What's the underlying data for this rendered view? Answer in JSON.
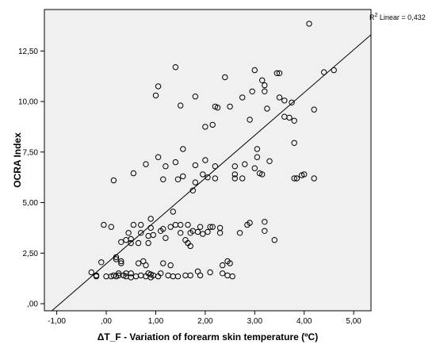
{
  "chart_data": {
    "type": "scatter",
    "xlabel": "ΔT_F - Variation of forearm skin temperature (ºC)",
    "ylabel": "OCRA Index",
    "xlim": [
      -1.25,
      5.35
    ],
    "ylim": [
      -0.35,
      14.55
    ],
    "x_ticks": [
      -1,
      0,
      1,
      2,
      3,
      4,
      5
    ],
    "x_tick_labels": [
      "-1,00",
      ",00",
      "1,00",
      "2,00",
      "3,00",
      "4,00",
      "5,00"
    ],
    "y_ticks": [
      0,
      2.5,
      5,
      7.5,
      10,
      12.5
    ],
    "y_tick_labels": [
      ",00",
      "2,50",
      "5,00",
      "7,50",
      "10,00",
      "12,50"
    ],
    "grid": false,
    "plot_background": "#f0f0f0",
    "marker_color": "#000000",
    "fit_line": {
      "label_prefix": "R",
      "label_sup": "2",
      "label_rest": " Linear = 0,432",
      "r_squared": 0.432,
      "x_from": -1.1,
      "y_from": -0.35,
      "x_to": 5.35,
      "y_to": 13.3
    },
    "points": [
      [
        -0.3,
        1.55
      ],
      [
        -0.2,
        1.35
      ],
      [
        -0.2,
        1.4
      ],
      [
        -0.1,
        2.05
      ],
      [
        -0.05,
        3.9
      ],
      [
        0,
        1.35
      ],
      [
        0.1,
        1.35
      ],
      [
        0.1,
        3.8
      ],
      [
        0.15,
        1.4
      ],
      [
        0.2,
        1.35
      ],
      [
        0.2,
        2.2
      ],
      [
        0.2,
        2.3
      ],
      [
        0.15,
        6.1
      ],
      [
        0.25,
        1.4
      ],
      [
        0.25,
        1.5
      ],
      [
        0.3,
        2.0
      ],
      [
        0.3,
        2.1
      ],
      [
        0.3,
        3.05
      ],
      [
        0.35,
        1.4
      ],
      [
        0.4,
        1.35
      ],
      [
        0.4,
        1.5
      ],
      [
        0.4,
        3.15
      ],
      [
        0.45,
        3.5
      ],
      [
        0.5,
        1.3
      ],
      [
        0.5,
        1.5
      ],
      [
        0.5,
        3.0
      ],
      [
        0.5,
        3.2
      ],
      [
        0.55,
        3.9
      ],
      [
        0.55,
        6.45
      ],
      [
        0.6,
        1.35
      ],
      [
        0.65,
        2.0
      ],
      [
        0.65,
        3.0
      ],
      [
        0.7,
        1.4
      ],
      [
        0.7,
        3.5
      ],
      [
        0.7,
        3.9
      ],
      [
        0.75,
        2.1
      ],
      [
        0.8,
        1.35
      ],
      [
        0.8,
        1.9
      ],
      [
        0.8,
        6.9
      ],
      [
        0.85,
        1.5
      ],
      [
        0.85,
        3.0
      ],
      [
        0.85,
        3.35
      ],
      [
        0.9,
        1.3
      ],
      [
        0.9,
        1.45
      ],
      [
        0.9,
        3.75
      ],
      [
        0.9,
        4.2
      ],
      [
        0.95,
        1.4
      ],
      [
        0.95,
        3.4
      ],
      [
        1.0,
        10.3
      ],
      [
        1.05,
        10.75
      ],
      [
        1.05,
        7.25
      ],
      [
        1.05,
        1.35
      ],
      [
        1.1,
        1.5
      ],
      [
        1.1,
        3.6
      ],
      [
        1.15,
        2.0
      ],
      [
        1.15,
        3.7
      ],
      [
        1.15,
        6.15
      ],
      [
        1.2,
        6.8
      ],
      [
        1.2,
        3.25
      ],
      [
        1.25,
        1.4
      ],
      [
        1.3,
        1.9
      ],
      [
        1.3,
        3.8
      ],
      [
        1.35,
        1.35
      ],
      [
        1.35,
        4.55
      ],
      [
        1.4,
        11.7
      ],
      [
        1.4,
        7.0
      ],
      [
        1.4,
        3.9
      ],
      [
        1.45,
        1.35
      ],
      [
        1.45,
        6.15
      ],
      [
        1.5,
        3.5
      ],
      [
        1.5,
        3.9
      ],
      [
        1.5,
        9.8
      ],
      [
        1.55,
        6.3
      ],
      [
        1.55,
        7.65
      ],
      [
        1.6,
        1.4
      ],
      [
        1.6,
        3.15
      ],
      [
        1.65,
        3.0
      ],
      [
        1.65,
        3.9
      ],
      [
        1.7,
        1.4
      ],
      [
        1.7,
        2.85
      ],
      [
        1.7,
        3.5
      ],
      [
        1.75,
        3.6
      ],
      [
        1.75,
        5.6
      ],
      [
        1.8,
        10.25
      ],
      [
        1.8,
        6.85
      ],
      [
        1.8,
        6.0
      ],
      [
        1.85,
        1.6
      ],
      [
        1.85,
        3.55
      ],
      [
        1.9,
        1.4
      ],
      [
        1.9,
        3.8
      ],
      [
        1.95,
        3.45
      ],
      [
        1.95,
        6.4
      ],
      [
        2.0,
        7.1
      ],
      [
        2.0,
        8.75
      ],
      [
        2.05,
        6.25
      ],
      [
        2.05,
        3.55
      ],
      [
        2.1,
        1.55
      ],
      [
        2.1,
        3.8
      ],
      [
        2.15,
        3.8
      ],
      [
        2.15,
        8.85
      ],
      [
        2.2,
        6.8
      ],
      [
        2.2,
        6.2
      ],
      [
        2.2,
        9.75
      ],
      [
        2.25,
        9.7
      ],
      [
        2.3,
        3.75
      ],
      [
        2.3,
        3.5
      ],
      [
        2.35,
        1.5
      ],
      [
        2.35,
        1.9
      ],
      [
        2.4,
        11.2
      ],
      [
        2.45,
        2.1
      ],
      [
        2.45,
        1.4
      ],
      [
        2.5,
        9.75
      ],
      [
        2.5,
        2.0
      ],
      [
        2.55,
        1.35
      ],
      [
        2.6,
        6.2
      ],
      [
        2.6,
        6.8
      ],
      [
        2.6,
        6.4
      ],
      [
        2.7,
        3.5
      ],
      [
        2.75,
        10.2
      ],
      [
        2.75,
        6.2
      ],
      [
        2.8,
        6.9
      ],
      [
        2.85,
        3.9
      ],
      [
        2.9,
        4.0
      ],
      [
        2.9,
        9.1
      ],
      [
        2.95,
        10.5
      ],
      [
        3.0,
        11.55
      ],
      [
        3.0,
        6.7
      ],
      [
        3.05,
        7.25
      ],
      [
        3.05,
        7.65
      ],
      [
        3.1,
        6.45
      ],
      [
        3.15,
        6.4
      ],
      [
        3.15,
        11.05
      ],
      [
        3.2,
        10.5
      ],
      [
        3.2,
        10.8
      ],
      [
        3.2,
        4.05
      ],
      [
        3.2,
        3.6
      ],
      [
        3.25,
        9.65
      ],
      [
        3.3,
        7.05
      ],
      [
        3.4,
        3.15
      ],
      [
        3.45,
        11.4
      ],
      [
        3.5,
        11.4
      ],
      [
        3.5,
        10.2
      ],
      [
        3.6,
        9.25
      ],
      [
        3.6,
        10.05
      ],
      [
        3.7,
        9.2
      ],
      [
        3.75,
        9.95
      ],
      [
        3.8,
        9.05
      ],
      [
        3.8,
        7.95
      ],
      [
        3.8,
        6.2
      ],
      [
        3.85,
        6.2
      ],
      [
        3.95,
        6.35
      ],
      [
        4.0,
        6.4
      ],
      [
        4.1,
        13.85
      ],
      [
        4.2,
        9.6
      ],
      [
        4.2,
        6.2
      ],
      [
        4.4,
        11.45
      ],
      [
        4.6,
        11.55
      ]
    ]
  }
}
